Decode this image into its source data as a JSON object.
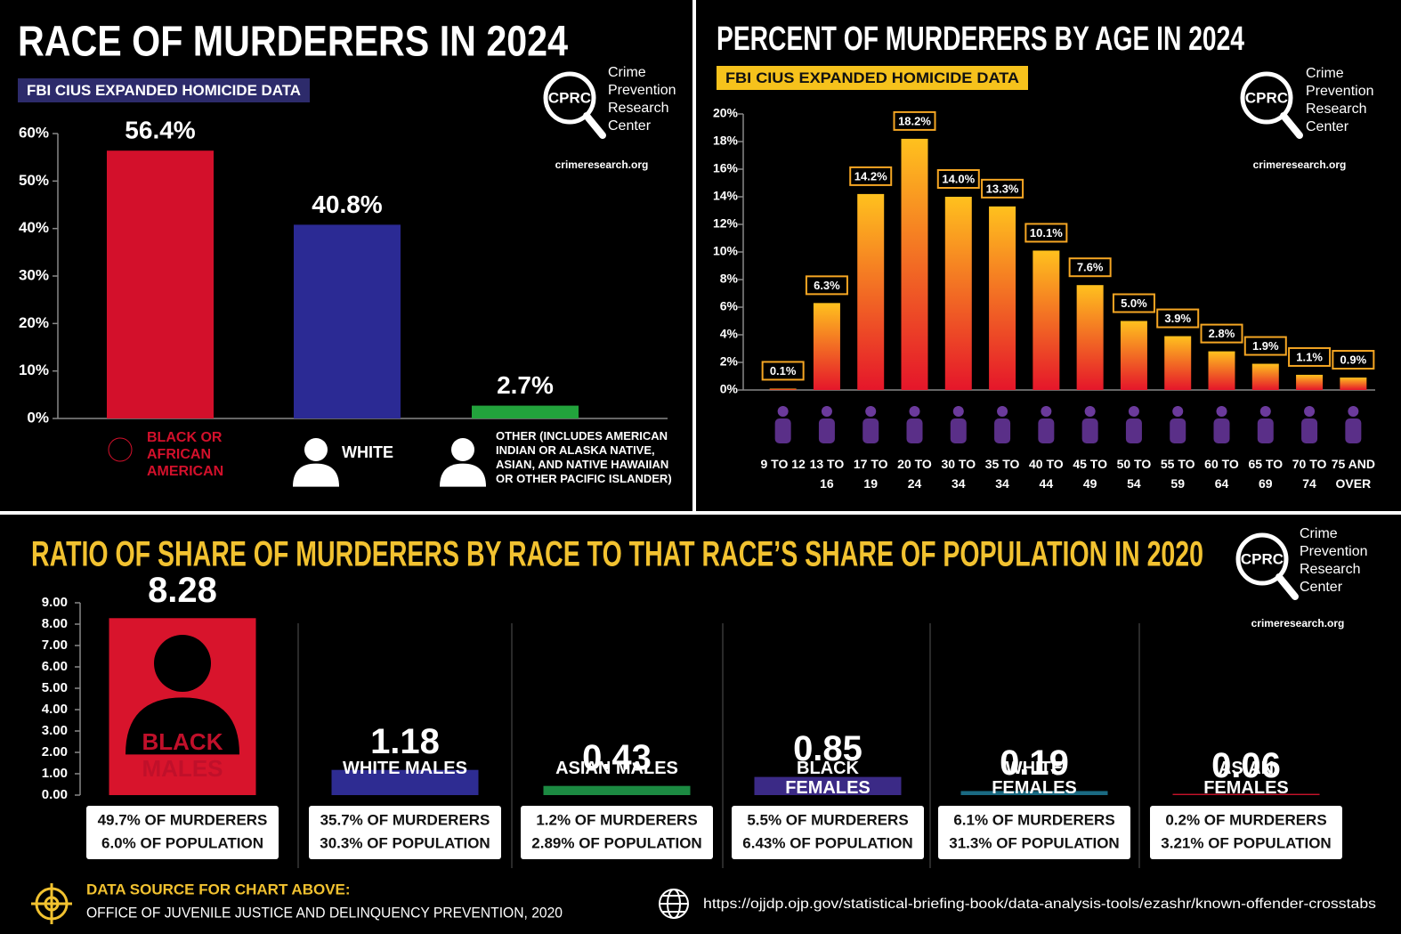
{
  "chart_data": [
    {
      "type": "bar",
      "title": "RACE OF MURDERERS IN 2024",
      "subtitle": "FBI CIUS EXPANDED HOMICIDE DATA",
      "categories": [
        "BLACK OR AFRICAN AMERICAN",
        "WHITE",
        "OTHER (INCLUDES AMERICAN INDIAN OR ALASKA NATIVE, ASIAN, AND NATIVE HAWAIIAN OR OTHER PACIFIC ISLANDER)"
      ],
      "values": [
        56.4,
        40.8,
        2.7
      ],
      "value_labels": [
        "56.4%",
        "40.8%",
        "2.7%"
      ],
      "colors": [
        "#d3102b",
        "#2b2a94",
        "#22a33c"
      ],
      "ylim": [
        0,
        60
      ],
      "yticks": [
        {
          "value": 0,
          "label": "0%"
        },
        {
          "value": 10,
          "label": "10%"
        },
        {
          "value": 20,
          "label": "20%"
        },
        {
          "value": 30,
          "label": "30%"
        },
        {
          "value": 40,
          "label": "40%"
        },
        {
          "value": 50,
          "label": "50%"
        },
        {
          "value": 60,
          "label": "60%"
        }
      ]
    },
    {
      "type": "bar",
      "title": "PERCENT OF MURDERERS BY AGE IN 2024",
      "subtitle": "FBI CIUS EXPANDED HOMICIDE DATA",
      "categories": [
        "9 TO 12",
        "13 TO 16",
        "17 TO 19",
        "20 TO 24",
        "30 TO 34",
        "35 TO 34",
        "40 TO 44",
        "45 TO 49",
        "50 TO 54",
        "55 TO 59",
        "60 TO 64",
        "65 TO 69",
        "70 TO 74",
        "75 AND OVER"
      ],
      "values": [
        0.1,
        6.3,
        14.2,
        18.2,
        14.0,
        13.3,
        10.1,
        7.6,
        5.0,
        3.9,
        2.8,
        1.9,
        1.1,
        0.9
      ],
      "value_labels": [
        "0.1%",
        "6.3%",
        "14.2%",
        "18.2%",
        "14.0%",
        "13.3%",
        "10.1%",
        "7.6%",
        "5.0%",
        "3.9%",
        "2.8%",
        "1.9%",
        "1.1%",
        "0.9%"
      ],
      "gradient": [
        "#ffc11e",
        "#e5162a"
      ],
      "ylim": [
        0,
        20
      ],
      "yticks": [
        {
          "value": 0,
          "label": "0%"
        },
        {
          "value": 2,
          "label": "2%"
        },
        {
          "value": 4,
          "label": "4%"
        },
        {
          "value": 6,
          "label": "6%"
        },
        {
          "value": 8,
          "label": "8%"
        },
        {
          "value": 10,
          "label": "10%"
        },
        {
          "value": 12,
          "label": "12%"
        },
        {
          "value": 14,
          "label": "14%"
        },
        {
          "value": 16,
          "label": "16%"
        },
        {
          "value": 18,
          "label": "18%"
        },
        {
          "value": 20,
          "label": "20%"
        }
      ]
    },
    {
      "type": "bar",
      "title": "RATIO OF SHARE OF MURDERERS BY RACE TO THAT RACE’S SHARE OF POPULATION IN 2020",
      "categories": [
        "BLACK MALES",
        "WHITE MALES",
        "ASIAN MALES",
        "BLACK FEMALES",
        "WHITE FEMALES",
        "ASIAN FEMALES"
      ],
      "values": [
        8.28,
        1.18,
        0.43,
        0.85,
        0.19,
        0.06
      ],
      "colors": [
        "#d8142c",
        "#2e2c92",
        "#1c8a42",
        "#3b2a86",
        "#1a6a82",
        "#c4122a"
      ],
      "annotations": [
        [
          "49.7% OF MURDERERS",
          "6.0% OF POPULATION"
        ],
        [
          "35.7% OF MURDERERS",
          "30.3% OF POPULATION"
        ],
        [
          "1.2% OF MURDERERS",
          "2.89% OF POPULATION"
        ],
        [
          "5.5% OF MURDERERS",
          "6.43% OF POPULATION"
        ],
        [
          "6.1% OF MURDERERS",
          "31.3% OF POPULATION"
        ],
        [
          "0.2% OF MURDERERS",
          "3.21% OF POPULATION"
        ]
      ],
      "ylim": [
        0,
        9
      ],
      "yticks": [
        {
          "value": 0,
          "label": "0.00"
        },
        {
          "value": 1,
          "label": "1.00"
        },
        {
          "value": 2,
          "label": "2.00"
        },
        {
          "value": 3,
          "label": "3.00"
        },
        {
          "value": 4,
          "label": "4.00"
        },
        {
          "value": 5,
          "label": "5.00"
        },
        {
          "value": 6,
          "label": "6.00"
        },
        {
          "value": 7,
          "label": "7.00"
        },
        {
          "value": 8,
          "label": "8.00"
        },
        {
          "value": 9,
          "label": "9.00"
        }
      ]
    }
  ],
  "logo": {
    "abbr": "CPRC",
    "name": "Crime Prevention Research Center",
    "website": "crimeresearch.org"
  },
  "source": {
    "heading": "DATA SOURCE FOR CHART ABOVE:",
    "text": "OFFICE OF JUVENILE JUSTICE AND DELINQUENCY PREVENTION, 2020",
    "url": "https://ojjdp.ojp.gov/statistical-briefing-book/data-analysis-tools/ezashr/known-offender-crosstabs"
  }
}
